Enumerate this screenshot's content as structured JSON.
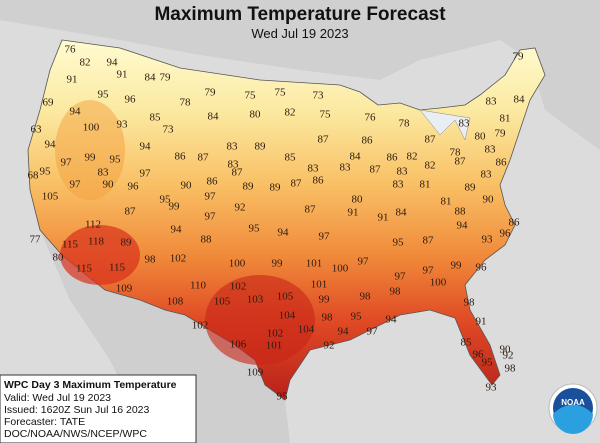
{
  "title": "Maximum Temperature Forecast",
  "date": "Wed Jul 19 2023",
  "info": {
    "product": "WPC Day 3 Maximum Temperature",
    "valid": "Valid: Wed Jul 19 2023",
    "issued": "Issued: 1620Z Sun Jul 16 2023",
    "forecaster": "Forecaster: TATE",
    "agency": "DOC/NOAA/NWS/NCEP/WPC"
  },
  "logo": "NOAA",
  "temperatures": [
    "76",
    "82",
    "94",
    "79",
    "91",
    "91",
    "84",
    "79",
    "95",
    "96",
    "78",
    "79",
    "75",
    "75",
    "73",
    "83",
    "84",
    "69",
    "94",
    "85",
    "84",
    "80",
    "82",
    "75",
    "76",
    "78",
    "83",
    "81",
    "63",
    "100",
    "93",
    "73",
    "87",
    "80",
    "79",
    "94",
    "94",
    "83",
    "89",
    "87",
    "86",
    "78",
    "83",
    "97",
    "99",
    "95",
    "86",
    "87",
    "83",
    "85",
    "84",
    "86",
    "82",
    "82",
    "87",
    "86",
    "68",
    "95",
    "83",
    "97",
    "87",
    "83",
    "83",
    "87",
    "83",
    "83",
    "97",
    "90",
    "96",
    "90",
    "86",
    "89",
    "89",
    "87",
    "86",
    "83",
    "81",
    "89",
    "105",
    "95",
    "99",
    "97",
    "92",
    "80",
    "81",
    "90",
    "87",
    "97",
    "87",
    "91",
    "91",
    "84",
    "88",
    "86",
    "112",
    "94",
    "95",
    "94",
    "97",
    "94",
    "96",
    "77",
    "115",
    "118",
    "89",
    "88",
    "95",
    "87",
    "93",
    "80",
    "98",
    "102",
    "100",
    "99",
    "101",
    "100",
    "97",
    "99",
    "96",
    "115",
    "115",
    "97",
    "97",
    "100",
    "109",
    "110",
    "102",
    "101",
    "105",
    "99",
    "98",
    "98",
    "108",
    "105",
    "103",
    "98",
    "104",
    "95",
    "98",
    "94",
    "91",
    "102",
    "102",
    "104",
    "94",
    "97",
    "106",
    "101",
    "92",
    "85",
    "90",
    "96",
    "95",
    "92",
    "98",
    "109",
    "93",
    "95"
  ]
}
